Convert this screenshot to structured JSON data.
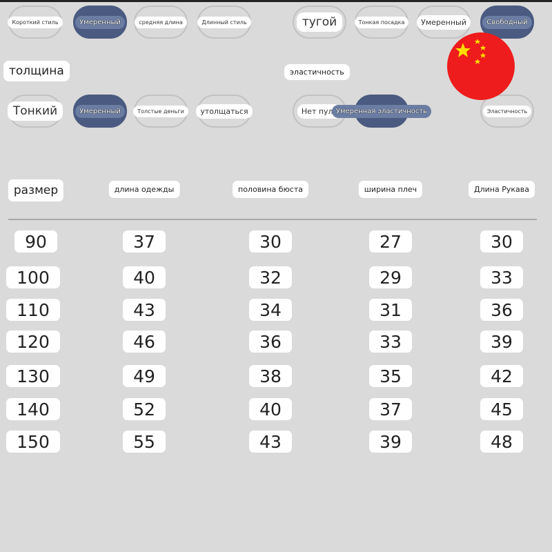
{
  "length": {
    "options": [
      "Короткий стиль",
      "Умеренный",
      "средняя длина",
      "Длинный стиль"
    ],
    "selected": 1
  },
  "fit": {
    "options": [
      "тугой",
      "Тонкая посадка",
      "Умеренный",
      "Свободный"
    ],
    "selected": 3
  },
  "thickness": {
    "label": "толщина",
    "options": [
      "Тонкий",
      "Умеренный",
      "Толстые деньги",
      "утолщаться"
    ],
    "selected": 1
  },
  "elasticity": {
    "label": "эластичность",
    "options": [
      "Нет пуль",
      "Умеренная эластичность",
      "Эластичность"
    ],
    "selected": 1
  },
  "flag": {
    "icon": "china-flag-icon",
    "colors": {
      "red": "#ee1c1c",
      "star": "#ffde00"
    }
  },
  "table": {
    "headers": [
      "размер",
      "длина одежды",
      "половина бюста",
      "ширина плеч",
      "Длина Рукава"
    ],
    "rows": [
      [
        "90",
        "37",
        "30",
        "27",
        "30"
      ],
      [
        "100",
        "40",
        "32",
        "29",
        "33"
      ],
      [
        "110",
        "43",
        "34",
        "31",
        "36"
      ],
      [
        "120",
        "46",
        "36",
        "33",
        "39"
      ],
      [
        "130",
        "49",
        "38",
        "35",
        "42"
      ],
      [
        "140",
        "52",
        "40",
        "37",
        "45"
      ],
      [
        "150",
        "55",
        "43",
        "39",
        "48"
      ]
    ]
  }
}
